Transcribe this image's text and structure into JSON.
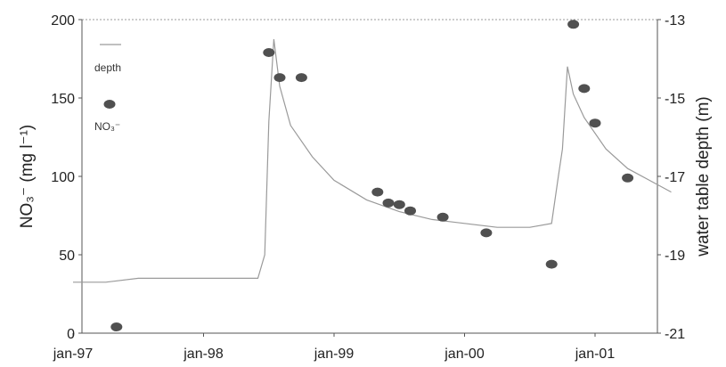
{
  "chart_data": {
    "type": "scatter",
    "title": "",
    "x_ticks": [
      "jan-97",
      "jan-98",
      "jan-99",
      "jan-00",
      "jan-01"
    ],
    "ylabel_left": "NO₃⁻ (mg l⁻¹)",
    "ylabel_right": "water table depth (m)",
    "ylim_left": [
      0,
      200
    ],
    "y_ticks_left": [
      "0",
      "50",
      "100",
      "150",
      "200"
    ],
    "ylim_right": [
      -21,
      -13
    ],
    "y_ticks_right": [
      "-13",
      "-15",
      "-17",
      "-19",
      "-21"
    ],
    "grid": false,
    "legend_position": "top-left",
    "legend": {
      "depth_label": "depth",
      "no3_label": "NO₃⁻"
    },
    "series": [
      {
        "name": "NO₃⁻",
        "kind": "scatter",
        "axis": "left",
        "color": "#505050",
        "points": [
          {
            "x": "1997-05",
            "y": 4
          },
          {
            "x": "1998-07",
            "y": 179
          },
          {
            "x": "1998-08",
            "y": 163
          },
          {
            "x": "1998-10",
            "y": 163
          },
          {
            "x": "1999-05",
            "y": 90
          },
          {
            "x": "1999-06",
            "y": 83
          },
          {
            "x": "1999-07",
            "y": 82
          },
          {
            "x": "1999-08",
            "y": 78
          },
          {
            "x": "1999-11",
            "y": 74
          },
          {
            "x": "2000-03",
            "y": 64
          },
          {
            "x": "2000-09",
            "y": 44
          },
          {
            "x": "2000-11",
            "y": 197
          },
          {
            "x": "2000-12",
            "y": 156
          },
          {
            "x": "2001-01",
            "y": 134
          },
          {
            "x": "2001-04",
            "y": 99
          }
        ]
      },
      {
        "name": "depth",
        "kind": "line",
        "axis": "right",
        "color": "#9a9a9a",
        "points": [
          {
            "x": "1997-01",
            "y": -19.7
          },
          {
            "x": "1997-04",
            "y": -19.7
          },
          {
            "x": "1997-07",
            "y": -19.6
          },
          {
            "x": "1997-10",
            "y": -19.6
          },
          {
            "x": "1998-01",
            "y": -19.6
          },
          {
            "x": "1998-04",
            "y": -19.6
          },
          {
            "x": "1998-06",
            "y": -19.6
          },
          {
            "x": "1998-06-20",
            "y": -19.0
          },
          {
            "x": "1998-07",
            "y": -15.6
          },
          {
            "x": "1998-07-15",
            "y": -13.5
          },
          {
            "x": "1998-08",
            "y": -14.7
          },
          {
            "x": "1998-09",
            "y": -15.7
          },
          {
            "x": "1998-11",
            "y": -16.5
          },
          {
            "x": "1999-01",
            "y": -17.1
          },
          {
            "x": "1999-04",
            "y": -17.6
          },
          {
            "x": "1999-07",
            "y": -17.9
          },
          {
            "x": "1999-10",
            "y": -18.1
          },
          {
            "x": "2000-01",
            "y": -18.2
          },
          {
            "x": "2000-04",
            "y": -18.3
          },
          {
            "x": "2000-07",
            "y": -18.3
          },
          {
            "x": "2000-09",
            "y": -18.2
          },
          {
            "x": "2000-09-20",
            "y": -17.0
          },
          {
            "x": "2000-10",
            "y": -16.3
          },
          {
            "x": "2000-10-15",
            "y": -14.2
          },
          {
            "x": "2000-11",
            "y": -14.9
          },
          {
            "x": "2000-12",
            "y": -15.5
          },
          {
            "x": "2001-02",
            "y": -16.3
          },
          {
            "x": "2001-04",
            "y": -16.8
          },
          {
            "x": "2001-06",
            "y": -17.1
          },
          {
            "x": "2001-08",
            "y": -17.4
          }
        ]
      }
    ]
  }
}
